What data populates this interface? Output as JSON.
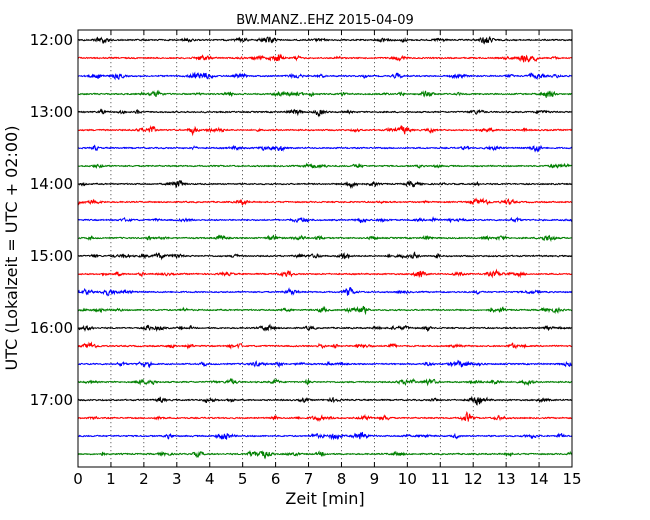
{
  "chart_data": {
    "type": "line",
    "title": "BW.MANZ..EHZ 2015-04-09",
    "xlabel": "Zeit  [min]",
    "ylabel": "UTC (Lokalzeit = UTC + 02:00)",
    "xlim": [
      0,
      15
    ],
    "x_ticks": [
      "0",
      "1",
      "2",
      "3",
      "4",
      "5",
      "6",
      "7",
      "8",
      "9",
      "10",
      "11",
      "12",
      "13",
      "14",
      "15"
    ],
    "y_ticks": [
      "12:00",
      "13:00",
      "14:00",
      "15:00",
      "16:00",
      "17:00"
    ],
    "grid": "vertical dotted",
    "trace_interval_min": 15,
    "colors": [
      "#000000",
      "#ff0000",
      "#0000ff",
      "#008000"
    ],
    "traces": [
      {
        "start": "12:00",
        "color": "#000000"
      },
      {
        "start": "12:15",
        "color": "#ff0000"
      },
      {
        "start": "12:30",
        "color": "#0000ff"
      },
      {
        "start": "12:45",
        "color": "#008000"
      },
      {
        "start": "13:00",
        "color": "#000000"
      },
      {
        "start": "13:15",
        "color": "#ff0000"
      },
      {
        "start": "13:30",
        "color": "#0000ff"
      },
      {
        "start": "13:45",
        "color": "#008000"
      },
      {
        "start": "14:00",
        "color": "#000000"
      },
      {
        "start": "14:15",
        "color": "#ff0000"
      },
      {
        "start": "14:30",
        "color": "#0000ff"
      },
      {
        "start": "14:45",
        "color": "#008000"
      },
      {
        "start": "15:00",
        "color": "#000000"
      },
      {
        "start": "15:15",
        "color": "#ff0000"
      },
      {
        "start": "15:30",
        "color": "#0000ff"
      },
      {
        "start": "15:45",
        "color": "#008000"
      },
      {
        "start": "16:00",
        "color": "#000000"
      },
      {
        "start": "16:15",
        "color": "#ff0000"
      },
      {
        "start": "16:30",
        "color": "#0000ff"
      },
      {
        "start": "16:45",
        "color": "#008000"
      },
      {
        "start": "17:00",
        "color": "#000000"
      },
      {
        "start": "17:15",
        "color": "#ff0000"
      },
      {
        "start": "17:30",
        "color": "#0000ff"
      },
      {
        "start": "17:45",
        "color": "#008000"
      }
    ]
  }
}
